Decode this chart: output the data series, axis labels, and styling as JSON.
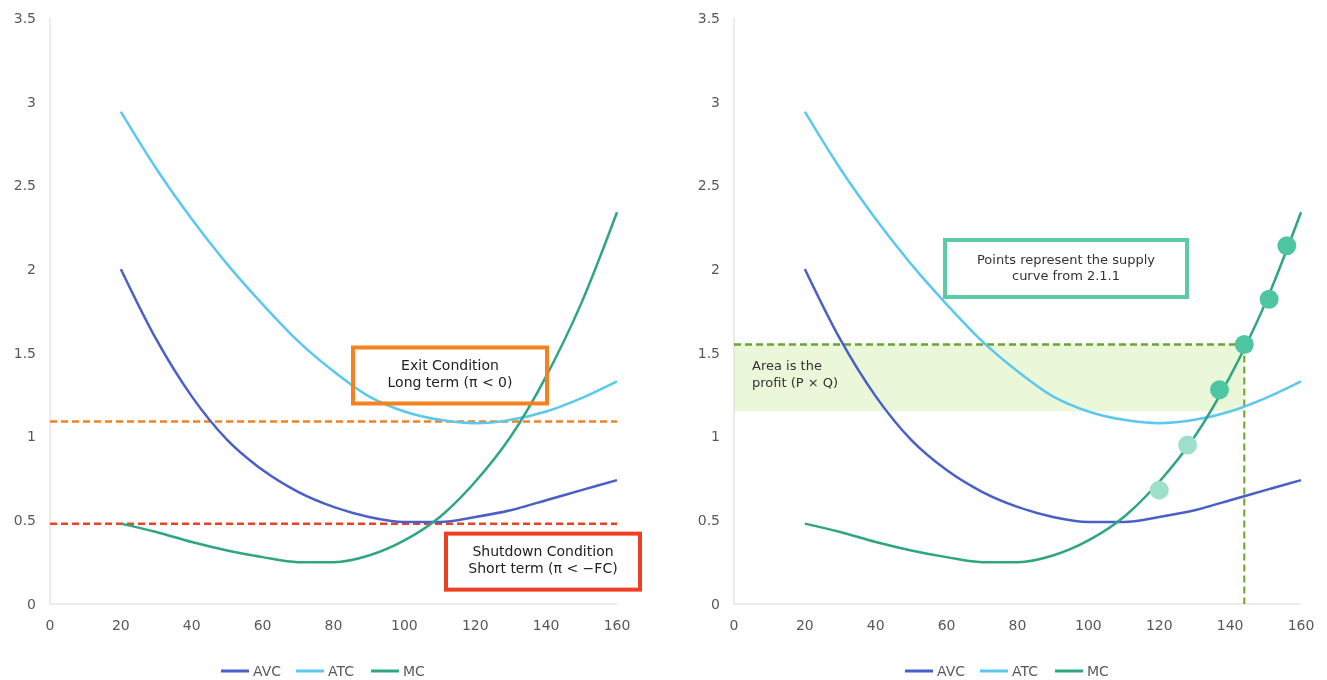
{
  "chart_data": [
    {
      "type": "line",
      "x": [
        20,
        30,
        40,
        50,
        60,
        70,
        80,
        90,
        100,
        110,
        120,
        130,
        140,
        150,
        160
      ],
      "xlim": [
        0,
        160
      ],
      "xticks": [
        0,
        20,
        40,
        60,
        80,
        100,
        120,
        140,
        160
      ],
      "ylim": [
        0,
        3.5
      ],
      "yticks": [
        0,
        0.5,
        1,
        1.5,
        2,
        2.5,
        3,
        3.5
      ],
      "grid": false,
      "legend": "bottom",
      "marker": "none",
      "line_style": "solid",
      "series": [
        {
          "name": "AVC",
          "color": "#4a5fc7",
          "values": [
            2.0,
            1.58,
            1.24,
            0.98,
            0.8,
            0.67,
            0.58,
            0.52,
            0.49,
            0.49,
            0.52,
            0.56,
            0.62,
            0.68,
            0.74
          ]
        },
        {
          "name": "ATC",
          "color": "#5bc8f0",
          "values": [
            2.94,
            2.6,
            2.3,
            2.03,
            1.79,
            1.57,
            1.39,
            1.24,
            1.15,
            1.1,
            1.08,
            1.1,
            1.15,
            1.23,
            1.33
          ]
        },
        {
          "name": "MC",
          "color": "#2ea583",
          "values": [
            0.48,
            0.43,
            0.37,
            0.32,
            0.28,
            0.25,
            0.25,
            0.29,
            0.38,
            0.52,
            0.73,
            1.0,
            1.36,
            1.8,
            2.34
          ]
        }
      ],
      "ref_lines": [
        {
          "axis": "y",
          "value": 1.09,
          "label": "Exit Condition\nLong term (π < 0)",
          "color": "#f5821f",
          "line_style": "dashed"
        },
        {
          "axis": "y",
          "value": 0.48,
          "label": "Shutdown Condition\nShort term (π < −FC)",
          "color": "#ee4123",
          "line_style": "dashed"
        }
      ]
    },
    {
      "type": "line",
      "x": [
        20,
        30,
        40,
        50,
        60,
        70,
        80,
        90,
        100,
        110,
        120,
        130,
        140,
        150,
        160
      ],
      "xlim": [
        0,
        160
      ],
      "xticks": [
        0,
        20,
        40,
        60,
        80,
        100,
        120,
        140,
        160
      ],
      "ylim": [
        0,
        3.5
      ],
      "yticks": [
        0,
        0.5,
        1,
        1.5,
        2,
        2.5,
        3,
        3.5
      ],
      "grid": false,
      "legend": "bottom",
      "marker": "none",
      "line_style": "solid",
      "series": [
        {
          "name": "AVC",
          "color": "#4a5fc7",
          "values": [
            2.0,
            1.58,
            1.24,
            0.98,
            0.8,
            0.67,
            0.58,
            0.52,
            0.49,
            0.49,
            0.52,
            0.56,
            0.62,
            0.68,
            0.74
          ]
        },
        {
          "name": "ATC",
          "color": "#5bc8f0",
          "values": [
            2.94,
            2.6,
            2.3,
            2.03,
            1.79,
            1.57,
            1.39,
            1.24,
            1.15,
            1.1,
            1.08,
            1.1,
            1.15,
            1.23,
            1.33
          ]
        },
        {
          "name": "MC",
          "color": "#2ea583",
          "values": [
            0.48,
            0.43,
            0.37,
            0.32,
            0.28,
            0.25,
            0.25,
            0.29,
            0.38,
            0.52,
            0.73,
            1.0,
            1.36,
            1.8,
            2.34
          ]
        },
        {
          "type": "scatter",
          "marker": "circle",
          "x": [
            120,
            128,
            137,
            144,
            151,
            156
          ],
          "values": [
            0.68,
            0.95,
            1.28,
            1.55,
            1.82,
            2.14
          ],
          "colors": [
            "#9fe0cb",
            "#9fe0cb",
            "#4fc6a2",
            "#4fc6a2",
            "#4fc6a2",
            "#4fc6a2"
          ]
        }
      ],
      "ref_lines": [
        {
          "axis": "y",
          "value": 1.55,
          "color": "#6aa336",
          "line_style": "dashed"
        },
        {
          "axis": "x",
          "value": 144,
          "color": "#6aa336",
          "line_style": "dashed"
        }
      ],
      "bands": [
        {
          "axis": "y",
          "from": 1.15,
          "to": 1.55,
          "label": "Area is the\nprofit (P × Q)",
          "color": "#eaf7d9"
        }
      ],
      "annotations": [
        "Points represent the supply\ncurve from 2.1.1"
      ]
    }
  ]
}
